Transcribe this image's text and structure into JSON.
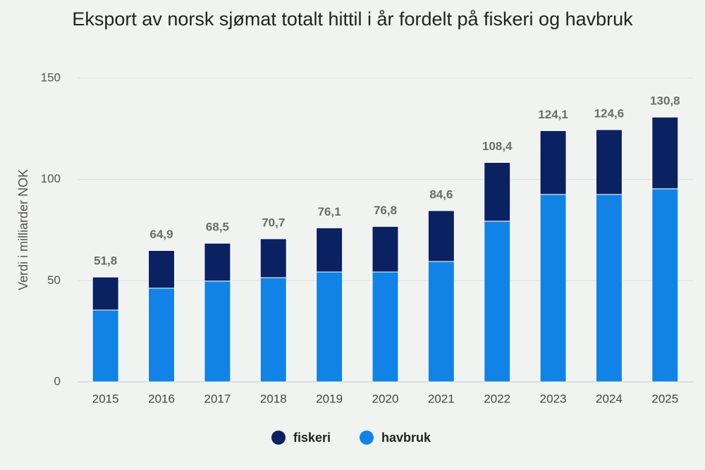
{
  "chart_data": {
    "type": "stacked_bar",
    "title": "Eksport av norsk sjømat totalt hittil i år fordelt på fiskeri og havbruk",
    "y_label": "Verdi i milliarder NOK",
    "categories": [
      "2015",
      "2016",
      "2017",
      "2018",
      "2019",
      "2020",
      "2021",
      "2022",
      "2023",
      "2024",
      "2025"
    ],
    "series": [
      {
        "name": "fiskeri",
        "color": "#0a2162",
        "values": [
          16.3,
          18.6,
          18.7,
          19.2,
          21.8,
          22.5,
          25.1,
          29.0,
          31.5,
          32.0,
          35.4
        ]
      },
      {
        "name": "havbruk",
        "color": "#1183e6",
        "values": [
          35.5,
          46.3,
          49.8,
          51.5,
          54.3,
          54.3,
          59.5,
          79.4,
          92.6,
          92.6,
          95.4
        ]
      }
    ],
    "totals": {
      "values": [
        51.8,
        64.9,
        68.5,
        70.7,
        76.1,
        76.8,
        84.6,
        108.4,
        124.1,
        124.6,
        130.8
      ],
      "value_labels": [
        "51,8",
        "64,9",
        "68,5",
        "70,7",
        "76,1",
        "76,8",
        "84,6",
        "108,4",
        "124,1",
        "124,6",
        "130,8"
      ]
    },
    "ylim": [
      0,
      150
    ],
    "yticks": [
      0,
      50,
      100,
      150
    ],
    "grid": true,
    "legend": "bottom"
  }
}
